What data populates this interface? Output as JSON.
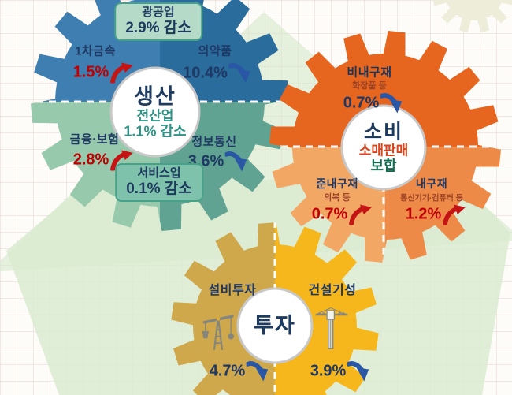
{
  "colors": {
    "navy_text": "#1f3864",
    "teal_text": "#2f9486",
    "red_value": "#c00000",
    "maroon_sublabel": "#9c4226",
    "retail_red": "#d8441d",
    "flat_green": "#0f6b4b",
    "up_arrow": "#c41414",
    "down_arrow": "#2a57a5",
    "production_top_left": "#3e7eb0",
    "production_top_right": "#2a6c9c",
    "production_bottom_left": "#97c9ac",
    "production_bottom_right": "#61a392",
    "badge_light_bg": "#b5dbc8",
    "badge_dark_bg": "#7fc2ac",
    "badge_border": "#46a189",
    "consumption_top": "#e7661f",
    "consumption_bottom_left": "#f3a765",
    "consumption_bottom_right": "#ed8a47",
    "investment_left": "#cfa84c",
    "investment_right": "#f6b71d",
    "hub_circle_border": "#c8c8c8",
    "background_green": "#d5e8cb"
  },
  "icons": {
    "facility": "oil-derrick-icon",
    "construction": "tower-crane-icon",
    "increase": "up-trend-arrow-icon",
    "decrease": "down-trend-arrow-icon"
  },
  "gears": {
    "production": {
      "title": "생산",
      "subtitle_line1": "전산업",
      "subtitle_line2": "1.1% 감소",
      "badge_top": {
        "label": "광공업",
        "value": "2.9% 감소"
      },
      "badge_bottom": {
        "label": "서비스업",
        "value": "0.1% 감소"
      },
      "items": {
        "primary_metal": {
          "label": "1차금속",
          "value": "1.5%",
          "direction": "up"
        },
        "pharma": {
          "label": "의약품",
          "value": "10.4%",
          "direction": "down"
        },
        "finance_insurance": {
          "label": "금융·보험",
          "value": "2.8%",
          "direction": "up"
        },
        "info_comm": {
          "label": "정보통신",
          "value": "3.6%",
          "direction": "down"
        }
      }
    },
    "consumption": {
      "title": "소비",
      "subtitle_line1": "소매판매",
      "subtitle_line2": "보합",
      "items": {
        "nondurables": {
          "label": "비내구재",
          "sublabel": "화장품 등",
          "value": "0.7%",
          "direction": "down"
        },
        "semidurables": {
          "label": "준내구재",
          "sublabel": "의복 등",
          "value": "0.7%",
          "direction": "up"
        },
        "durables": {
          "label": "내구재",
          "sublabel": "통신기기·컴퓨터 등",
          "value": "1.2%",
          "direction": "up"
        }
      }
    },
    "investment": {
      "title": "투자",
      "items": {
        "facility": {
          "label": "설비투자",
          "value": "4.7%",
          "direction": "down"
        },
        "construction": {
          "label": "건설기성",
          "value": "3.9%",
          "direction": "down"
        }
      }
    }
  }
}
